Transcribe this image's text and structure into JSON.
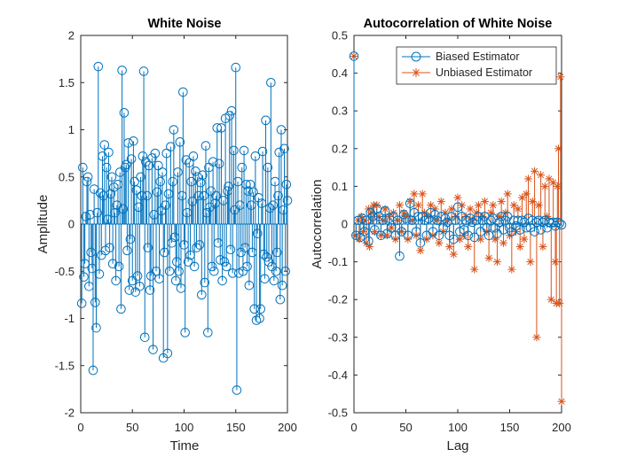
{
  "chart_data": [
    {
      "type": "stem",
      "title": "White Noise",
      "xlabel": "Time",
      "ylabel": "Amplitude",
      "xlim": [
        0,
        200
      ],
      "ylim": [
        -2,
        2
      ],
      "xticks": [
        0,
        50,
        100,
        150,
        200
      ],
      "yticks": [
        -2,
        -1.5,
        -1,
        -0.5,
        0,
        0.5,
        1,
        1.5,
        2
      ],
      "xtick_labels": [
        "0",
        "50",
        "100",
        "150",
        "200"
      ],
      "ytick_labels": [
        "-2",
        "-1.5",
        "-1",
        "-0.5",
        "0",
        "0.5",
        "1",
        "1.5",
        "2"
      ],
      "marker": "circle",
      "color": "#0072BD",
      "series": [
        {
          "x": [
            1,
            2,
            3,
            4,
            5,
            6,
            7,
            8,
            9,
            10,
            11,
            12,
            13,
            14,
            15,
            16,
            17,
            18,
            19,
            20,
            21,
            22,
            23,
            24,
            25,
            26,
            27,
            28,
            29,
            30,
            31,
            32,
            33,
            34,
            35,
            36,
            37,
            38,
            39,
            40,
            41,
            42,
            43,
            44,
            45,
            46,
            47,
            48,
            49,
            50,
            51,
            52,
            53,
            54,
            55,
            56,
            57,
            58,
            59,
            60,
            61,
            62,
            63,
            64,
            65,
            66,
            67,
            68,
            69,
            70,
            71,
            72,
            73,
            74,
            75,
            76,
            77,
            78,
            79,
            80,
            81,
            82,
            83,
            84,
            85,
            86,
            87,
            88,
            89,
            90,
            91,
            92,
            93,
            94,
            95,
            96,
            97,
            98,
            99,
            100,
            101,
            102,
            103,
            104,
            105,
            106,
            107,
            108,
            109,
            110,
            111,
            112,
            113,
            114,
            115,
            116,
            117,
            118,
            119,
            120,
            121,
            122,
            123,
            124,
            125,
            126,
            127,
            128,
            129,
            130,
            131,
            132,
            133,
            134,
            135,
            136,
            137,
            138,
            139,
            140,
            141,
            142,
            143,
            144,
            145,
            146,
            147,
            148,
            149,
            150,
            151,
            152,
            153,
            154,
            155,
            156,
            157,
            158,
            159,
            160,
            161,
            162,
            163,
            164,
            165,
            166,
            167,
            168,
            169,
            170,
            171,
            172,
            173,
            174,
            175,
            176,
            177,
            178,
            179,
            180,
            181,
            182,
            183,
            184,
            185,
            186,
            187,
            188,
            189,
            190,
            191,
            192,
            193,
            194,
            195,
            196,
            197,
            198,
            199,
            200
          ],
          "y": [
            -0.84,
            0.6,
            -0.56,
            -0.42,
            0.08,
            0.45,
            0.5,
            -0.66,
            0.1,
            -0.3,
            -0.47,
            -1.55,
            0.37,
            -0.83,
            -1.1,
            0.12,
            1.67,
            -0.53,
            0.33,
            -0.33,
            0.72,
            0.3,
            0.84,
            -0.28,
            0.6,
            0.05,
            0.76,
            -0.25,
            0.32,
            0.5,
            -0.42,
            0.39,
            0.12,
            -0.6,
            0.2,
            0.42,
            -0.45,
            0.55,
            -0.9,
            1.63,
            0.16,
            1.18,
            0.6,
            0.63,
            -0.28,
            0.86,
            -0.7,
            -0.16,
            0.69,
            -0.6,
            0.88,
            0.45,
            -0.72,
            0.36,
            -0.55,
            0.18,
            -0.66,
            0.5,
            0.3,
            0.72,
            1.62,
            -1.2,
            0.66,
            0.3,
            -0.25,
            0.62,
            -0.7,
            -0.55,
            0.7,
            -1.33,
            0.1,
            0.75,
            -0.5,
            0.34,
            0.62,
            -0.58,
            0.45,
            0.14,
            0.55,
            -1.42,
            -0.3,
            0.2,
            0.75,
            -1.37,
            0.32,
            -0.5,
            0.82,
            -0.2,
            0.45,
            1.0,
            -0.14,
            -0.6,
            -0.4,
            0.55,
            -0.5,
            0.87,
            -0.68,
            0.3,
            1.4,
            -0.22,
            -1.15,
            0.68,
            0.12,
            -0.4,
            0.65,
            -0.33,
            0.45,
            0.24,
            0.72,
            -0.45,
            0.56,
            -0.25,
            0.5,
            0.3,
            -0.22,
            0.44,
            -0.75,
            0.52,
            0.3,
            -0.62,
            0.83,
            0.12,
            -1.15,
            0.6,
            0.18,
            0.35,
            -0.45,
            0.66,
            -0.5,
            0.22,
            0.3,
            1.02,
            -0.2,
            0.64,
            -0.38,
            1.02,
            -0.6,
            0.25,
            -0.4,
            1.12,
            -0.45,
            0.35,
            0.4,
            1.15,
            -0.27,
            1.2,
            -0.52,
            0.78,
            0.15,
            1.66,
            -1.76,
            0.45,
            -0.52,
            0.2,
            -0.3,
            0.6,
            -0.5,
            0.78,
            -0.25,
            0.42,
            -0.45,
            0.35,
            -0.65,
            0.42,
            0.2,
            -0.3,
            0.34,
            -0.9,
            0.72,
            -1.02,
            -0.1,
            0.28,
            -1.0,
            -0.9,
            0.22,
            0.77,
            -0.32,
            -0.58,
            1.1,
            -0.35,
            0.6,
            -0.4,
            0.17,
            1.5,
            -0.45,
            0.2,
            -0.6,
            0.45,
            -0.5,
            -0.3,
            0.3,
            0.76,
            -0.8,
            1.0,
            -0.65,
            0.15,
            0.8,
            -0.5,
            0.42,
            0.25
          ]
        }
      ]
    },
    {
      "type": "stem",
      "title": "Autocorrelation of White Noise",
      "xlabel": "Lag",
      "ylabel": "Autocorrelation",
      "xlim": [
        0,
        200
      ],
      "ylim": [
        -0.5,
        0.5
      ],
      "xticks": [
        0,
        50,
        100,
        150,
        200
      ],
      "yticks": [
        -0.5,
        -0.4,
        -0.3,
        -0.2,
        -0.1,
        0,
        0.1,
        0.2,
        0.3,
        0.4,
        0.5
      ],
      "xtick_labels": [
        "0",
        "50",
        "100",
        "150",
        "200"
      ],
      "ytick_labels": [
        "-0.5",
        "-0.4",
        "-0.3",
        "-0.2",
        "-0.1",
        "0",
        "0.1",
        "0.2",
        "0.3",
        "0.4",
        "0.5"
      ],
      "legend_position": "top-right",
      "series": [
        {
          "name": "Unbiased Estimator",
          "marker": "asterisk",
          "color": "#D95319",
          "x": [
            0,
            2,
            4,
            5,
            7,
            9,
            10,
            12,
            14,
            15,
            17,
            19,
            20,
            22,
            24,
            26,
            28,
            30,
            32,
            34,
            36,
            38,
            40,
            42,
            44,
            46,
            48,
            50,
            52,
            54,
            56,
            58,
            60,
            62,
            64,
            66,
            68,
            70,
            72,
            74,
            76,
            78,
            80,
            82,
            84,
            86,
            88,
            90,
            92,
            94,
            96,
            98,
            100,
            102,
            104,
            106,
            108,
            110,
            112,
            114,
            116,
            118,
            120,
            122,
            124,
            126,
            128,
            130,
            132,
            134,
            136,
            138,
            140,
            142,
            144,
            146,
            148,
            150,
            152,
            154,
            156,
            158,
            160,
            162,
            164,
            166,
            168,
            170,
            172,
            174,
            176,
            178,
            180,
            182,
            184,
            186,
            188,
            190,
            192,
            194,
            195,
            196,
            197,
            198,
            199,
            200
          ],
          "y": [
            0.445,
            -0.03,
            0.01,
            -0.04,
            0.02,
            -0.02,
            0.01,
            -0.05,
            0.04,
            -0.06,
            0.03,
            0.05,
            -0.02,
            0.05,
            0.02,
            -0.03,
            0.01,
            0.04,
            -0.03,
            0.02,
            -0.01,
            0.03,
            -0.04,
            0.01,
            0.05,
            -0.02,
            0.03,
            0.02,
            -0.04,
            0.06,
            0.01,
            0.08,
            -0.03,
            0.05,
            -0.07,
            0.08,
            0.03,
            -0.04,
            0.02,
            0.05,
            -0.03,
            0.04,
            0.01,
            -0.05,
            0.06,
            -0.02,
            0.03,
            0.01,
            -0.06,
            0.04,
            -0.08,
            0.02,
            0.07,
            -0.04,
            0.05,
            -0.03,
            0.02,
            -0.06,
            0.04,
            0.01,
            -0.12,
            0.03,
            0.05,
            -0.04,
            0.02,
            0.06,
            -0.02,
            -0.09,
            0.03,
            0.05,
            -0.04,
            -0.1,
            0.02,
            0.06,
            -0.05,
            0.03,
            0.08,
            -0.03,
            -0.12,
            0.05,
            -0.02,
            0.04,
            -0.06,
            0.07,
            -0.04,
            0.08,
            0.12,
            -0.1,
            0.06,
            0.14,
            -0.3,
            0.05,
            0.13,
            -0.06,
            0.1,
            0.02,
            0.12,
            -0.2,
            0.11,
            -0.1,
            -0.21,
            0.1,
            0.2,
            -0.21,
            0.39,
            -0.47
          ]
        },
        {
          "name": "Biased Estimator",
          "marker": "circle",
          "color": "#0072BD",
          "x": [
            0,
            2,
            4,
            6,
            8,
            10,
            12,
            14,
            16,
            18,
            20,
            22,
            24,
            26,
            28,
            30,
            32,
            34,
            36,
            38,
            40,
            42,
            44,
            46,
            48,
            50,
            52,
            54,
            56,
            58,
            60,
            62,
            64,
            66,
            68,
            70,
            72,
            74,
            76,
            78,
            80,
            82,
            84,
            86,
            88,
            90,
            92,
            94,
            96,
            98,
            100,
            102,
            104,
            106,
            108,
            110,
            112,
            114,
            116,
            118,
            120,
            122,
            124,
            126,
            128,
            130,
            132,
            134,
            136,
            138,
            140,
            142,
            144,
            146,
            148,
            150,
            152,
            154,
            156,
            158,
            160,
            162,
            164,
            166,
            168,
            170,
            172,
            174,
            176,
            178,
            180,
            182,
            184,
            186,
            188,
            190,
            192,
            194,
            196,
            198,
            200
          ],
          "y": [
            0.445,
            -0.03,
            0.01,
            -0.035,
            0.015,
            -0.02,
            0.01,
            -0.045,
            0.03,
            0.02,
            -0.015,
            0.04,
            0.02,
            -0.03,
            0.01,
            0.035,
            -0.025,
            0.015,
            -0.01,
            0.02,
            -0.03,
            0.01,
            -0.085,
            -0.02,
            0.025,
            0.015,
            -0.03,
            0.055,
            0.01,
            0.03,
            -0.02,
            0.02,
            -0.05,
            0.02,
            0.01,
            -0.03,
            0.015,
            0.03,
            -0.02,
            0.025,
            0.01,
            -0.03,
            0.02,
            -0.01,
            0.015,
            0.005,
            -0.03,
            0.02,
            -0.04,
            0.01,
            0.045,
            -0.02,
            0.02,
            -0.015,
            0.01,
            -0.03,
            0.015,
            0.005,
            -0.035,
            0.01,
            0.02,
            -0.02,
            0.01,
            0.02,
            -0.01,
            -0.03,
            0.01,
            0.015,
            -0.01,
            -0.025,
            0.005,
            0.02,
            -0.015,
            0.01,
            0.02,
            -0.01,
            -0.02,
            0.01,
            -0.005,
            0.01,
            -0.015,
            0.01,
            0.005,
            -0.01,
            0.015,
            -0.01,
            0.01,
            -0.02,
            0.005,
            0.01,
            -0.015,
            0.005,
            0.01,
            -0.01,
            0.005,
            0.002,
            0.005,
            -0.005,
            0.005,
            0.002,
            -0.002
          ]
        }
      ]
    }
  ]
}
